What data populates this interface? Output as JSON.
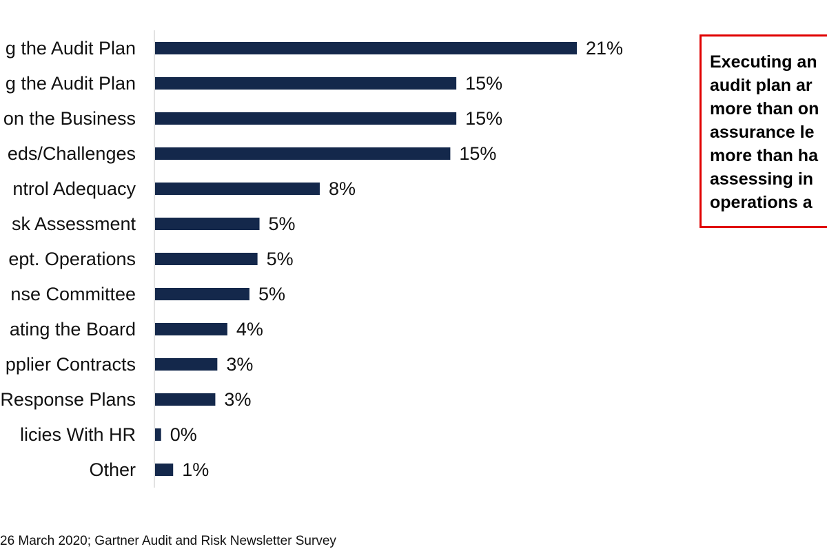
{
  "chart_data": {
    "type": "bar",
    "orientation": "horizontal",
    "categories": [
      "g the Audit Plan",
      "g the Audit Plan",
      "on the Business",
      "eds/Challenges",
      "ntrol Adequacy",
      "sk Assessment",
      "ept. Operations",
      "nse Committee",
      "ating the Board",
      "pplier Contracts",
      "Response Plans",
      "licies With HR",
      "Other"
    ],
    "values": [
      21,
      15,
      15,
      15,
      8,
      5,
      5,
      5,
      4,
      3,
      3,
      0,
      1
    ],
    "value_labels": [
      "21%",
      "15%",
      "15%",
      "15%",
      "8%",
      "5%",
      "5%",
      "5%",
      "4%",
      "3%",
      "3%",
      "0%",
      "1%"
    ],
    "bar_values_precise": [
      21,
      15,
      15,
      14.7,
      8.2,
      5.2,
      5.1,
      4.7,
      3.6,
      3.1,
      3.0,
      0.3,
      0.9
    ],
    "unit": "%",
    "xlim": [
      0,
      21
    ],
    "grid": false,
    "legend": "none",
    "bar_color": "#14284b",
    "axis_color": "#d9d9d9"
  },
  "callout": {
    "lines": [
      "Executing an",
      "audit plan ar",
      "more than on",
      "assurance le",
      "more than ha",
      "assessing in",
      "operations a"
    ],
    "border_color": "#e00000"
  },
  "source_note": "26 March 2020; Gartner Audit and Risk Newsletter Survey"
}
